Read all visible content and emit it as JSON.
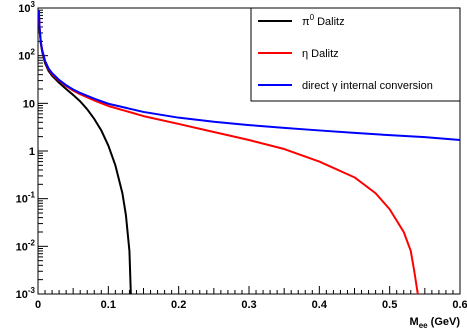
{
  "chart_data": {
    "type": "line",
    "title": "",
    "xlabel": "M",
    "xlabel_sub": "ee",
    "xlabel_unit": " (GeV)",
    "ylabel": "",
    "xlim": [
      0,
      0.6
    ],
    "ylim": [
      0.001,
      1000
    ],
    "yscale": "log",
    "grid": false,
    "legend_position": "top-right",
    "x_ticks": [
      {
        "value": 0,
        "label": "0"
      },
      {
        "value": 0.1,
        "label": "0.1"
      },
      {
        "value": 0.2,
        "label": "0.2"
      },
      {
        "value": 0.3,
        "label": "0.3"
      },
      {
        "value": 0.4,
        "label": "0.4"
      },
      {
        "value": 0.5,
        "label": "0.5"
      },
      {
        "value": 0.6,
        "label": "0.6"
      }
    ],
    "y_ticks": [
      {
        "value": 0.001,
        "base": "10",
        "exp": "-3"
      },
      {
        "value": 0.01,
        "base": "10",
        "exp": "-2"
      },
      {
        "value": 0.1,
        "base": "10",
        "exp": "-1"
      },
      {
        "value": 1,
        "base": "1",
        "exp": ""
      },
      {
        "value": 10,
        "base": "10",
        "exp": ""
      },
      {
        "value": 100,
        "base": "10",
        "exp": "2"
      },
      {
        "value": 1000,
        "base": "10",
        "exp": "3"
      }
    ],
    "series": [
      {
        "name": "π⁰ Dalitz",
        "color": "#000000",
        "points": [
          [
            0.0012,
            900
          ],
          [
            0.002,
            400
          ],
          [
            0.004,
            180
          ],
          [
            0.006,
            120
          ],
          [
            0.01,
            70
          ],
          [
            0.015,
            48
          ],
          [
            0.02,
            38
          ],
          [
            0.03,
            27
          ],
          [
            0.04,
            20
          ],
          [
            0.05,
            15
          ],
          [
            0.06,
            11
          ],
          [
            0.07,
            7.5
          ],
          [
            0.08,
            4.7
          ],
          [
            0.09,
            2.7
          ],
          [
            0.1,
            1.3
          ],
          [
            0.11,
            0.5
          ],
          [
            0.12,
            0.13
          ],
          [
            0.125,
            0.045
          ],
          [
            0.13,
            0.008
          ],
          [
            0.132,
            0.001
          ]
        ]
      },
      {
        "name": "η Dalitz",
        "color": "#ff0000",
        "points": [
          [
            0.0012,
            900
          ],
          [
            0.002,
            420
          ],
          [
            0.004,
            190
          ],
          [
            0.006,
            128
          ],
          [
            0.01,
            76
          ],
          [
            0.015,
            52
          ],
          [
            0.02,
            41
          ],
          [
            0.03,
            30
          ],
          [
            0.04,
            23
          ],
          [
            0.05,
            18.5
          ],
          [
            0.06,
            15.5
          ],
          [
            0.08,
            11.5
          ],
          [
            0.1,
            8.8
          ],
          [
            0.15,
            5.4
          ],
          [
            0.2,
            3.7
          ],
          [
            0.25,
            2.5
          ],
          [
            0.3,
            1.7
          ],
          [
            0.35,
            1.1
          ],
          [
            0.4,
            0.6
          ],
          [
            0.45,
            0.28
          ],
          [
            0.48,
            0.13
          ],
          [
            0.5,
            0.06
          ],
          [
            0.52,
            0.02
          ],
          [
            0.53,
            0.008
          ],
          [
            0.535,
            0.003
          ],
          [
            0.54,
            0.001
          ]
        ]
      },
      {
        "name": "direct γ internal conversion",
        "color": "#0000ff",
        "points": [
          [
            0.0012,
            900
          ],
          [
            0.002,
            420
          ],
          [
            0.004,
            195
          ],
          [
            0.006,
            130
          ],
          [
            0.01,
            78
          ],
          [
            0.015,
            54
          ],
          [
            0.02,
            43
          ],
          [
            0.03,
            31
          ],
          [
            0.04,
            24
          ],
          [
            0.05,
            19.5
          ],
          [
            0.06,
            16.5
          ],
          [
            0.08,
            12.5
          ],
          [
            0.1,
            9.8
          ],
          [
            0.15,
            6.6
          ],
          [
            0.2,
            5.0
          ],
          [
            0.25,
            4.1
          ],
          [
            0.3,
            3.5
          ],
          [
            0.35,
            3.05
          ],
          [
            0.4,
            2.7
          ],
          [
            0.45,
            2.4
          ],
          [
            0.5,
            2.15
          ],
          [
            0.55,
            1.95
          ],
          [
            0.6,
            1.7
          ]
        ]
      }
    ]
  },
  "legend": {
    "items": [
      {
        "label_prefix": "π",
        "label_sup": "0",
        "label_suffix": " Dalitz"
      },
      {
        "label_prefix": "η Dalitz",
        "label_sup": "",
        "label_suffix": ""
      },
      {
        "label_prefix": "direct γ internal conversion",
        "label_sup": "",
        "label_suffix": ""
      }
    ]
  }
}
